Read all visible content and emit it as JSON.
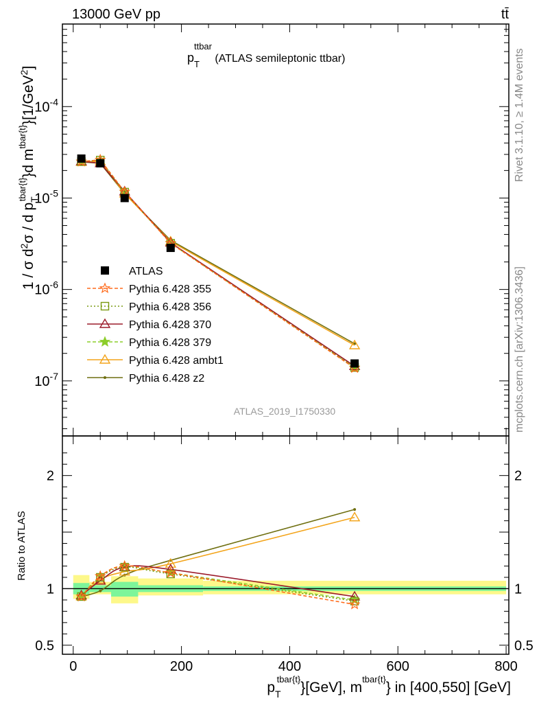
{
  "header": {
    "left": "13000 GeV pp",
    "right": "tt̄"
  },
  "side_labels": {
    "rivet": "Rivet 3.1.10, ≥ 1.4M events",
    "mcplots": "mcplots.cern.ch [arXiv:1306.3436]"
  },
  "colors": {
    "data": "#000000",
    "band_inner": "#7df59a",
    "band_outer": "#fdf88a",
    "p355": "#ff6a1a",
    "p356": "#7a9a10",
    "p370": "#9b1b2a",
    "p379": "#8ccd2a",
    "ambt1": "#f3a41a",
    "z2": "#6f6f10"
  },
  "chart_data": [
    {
      "type": "line",
      "title_main": "p",
      "title_sub": "T",
      "title_sup": "ttbar",
      "title_rest": " (ATLAS semileptonic ttbar)",
      "watermark": "ATLAS_2019_I1750330",
      "ylabel": "1 / σ d²σ / d p_T^{tbar{t}} d m^{tbar{t}} [1/GeV²]",
      "yscale": "log",
      "ylim": [
        2.5e-08,
        0.0008
      ],
      "xlim": [
        -20,
        805
      ],
      "y_tick_labels": [
        "10^-7",
        "10^-6",
        "10^-5",
        "10^-4"
      ],
      "legend_position": "left-middle",
      "x": [
        15,
        50,
        95,
        180,
        520
      ],
      "series": [
        {
          "name": "ATLAS",
          "style": "data",
          "values": [
            2.7e-05,
            2.4e-05,
            1e-05,
            2.85e-06,
            1.55e-07
          ]
        },
        {
          "name": "Pythia 6.428 355",
          "style": "p355",
          "values": [
            2.5e-05,
            2.62e-05,
            1.17e-05,
            3.2e-06,
            1.38e-07
          ]
        },
        {
          "name": "Pythia 6.428 356",
          "style": "p356",
          "values": [
            2.5e-05,
            2.6e-05,
            1.16e-05,
            3.2e-06,
            1.4e-07
          ]
        },
        {
          "name": "Pythia 6.428 370",
          "style": "p370",
          "values": [
            2.52e-05,
            2.4e-05,
            1.18e-05,
            3.25e-06,
            1.45e-07
          ]
        },
        {
          "name": "Pythia 6.428 379",
          "style": "p379",
          "values": [
            2.5e-05,
            2.62e-05,
            1.17e-05,
            3.22e-06,
            1.4e-07
          ]
        },
        {
          "name": "Pythia 6.428 ambt1",
          "style": "ambt1",
          "values": [
            2.48e-05,
            2.52e-05,
            1.12e-05,
            3.35e-06,
            2.45e-07
          ]
        },
        {
          "name": "Pythia 6.428 z2",
          "style": "z2",
          "values": [
            2.48e-05,
            2.4e-05,
            1.12e-05,
            3.45e-06,
            2.55e-07
          ]
        }
      ]
    },
    {
      "type": "line",
      "ylabel": "Ratio to ATLAS",
      "ylim": [
        0.42,
        2.35
      ],
      "y_ticks": [
        0.5,
        1,
        2
      ],
      "y_tick_labels": [
        "0.5",
        "1",
        "2"
      ],
      "xlim": [
        -20,
        805
      ],
      "x_ticks": [
        0,
        200,
        400,
        600,
        800
      ],
      "x_tick_labels": [
        "0",
        "200",
        "400",
        "600",
        "800"
      ],
      "xlabel": "p_T^{tbar{t}}[GeV], m^{tbar{t}} in [400,550] [GeV]",
      "bins": [
        [
          0,
          30
        ],
        [
          30,
          70
        ],
        [
          70,
          120
        ],
        [
          120,
          240
        ],
        [
          240,
          800
        ]
      ],
      "band_inner": [
        [
          0.95,
          1.05
        ],
        [
          0.97,
          1.03
        ],
        [
          0.93,
          1.06
        ],
        [
          0.97,
          1.03
        ],
        [
          0.98,
          1.02
        ]
      ],
      "band_outer": [
        [
          0.91,
          1.12
        ],
        [
          0.95,
          1.06
        ],
        [
          0.87,
          1.11
        ],
        [
          0.94,
          1.09
        ],
        [
          0.95,
          1.07
        ]
      ],
      "x": [
        15,
        50,
        95,
        180,
        520
      ],
      "series": [
        {
          "name": "Pythia 6.428 355",
          "style": "p355",
          "values": [
            0.93,
            1.11,
            1.2,
            1.14,
            0.86
          ]
        },
        {
          "name": "Pythia 6.428 356",
          "style": "p356",
          "values": [
            0.93,
            1.1,
            1.19,
            1.13,
            0.89
          ]
        },
        {
          "name": "Pythia 6.428 370",
          "style": "p370",
          "values": [
            0.94,
            1.07,
            1.19,
            1.17,
            0.93
          ]
        },
        {
          "name": "Pythia 6.428 379",
          "style": "p379",
          "values": [
            0.93,
            1.11,
            1.2,
            1.14,
            0.9
          ]
        },
        {
          "name": "Pythia 6.428 ambt1",
          "style": "ambt1",
          "values": [
            0.93,
            1.08,
            1.15,
            1.22,
            1.63
          ]
        },
        {
          "name": "Pythia 6.428 z2",
          "style": "z2",
          "values": [
            0.93,
            0.98,
            1.12,
            1.25,
            1.7
          ]
        }
      ]
    }
  ]
}
